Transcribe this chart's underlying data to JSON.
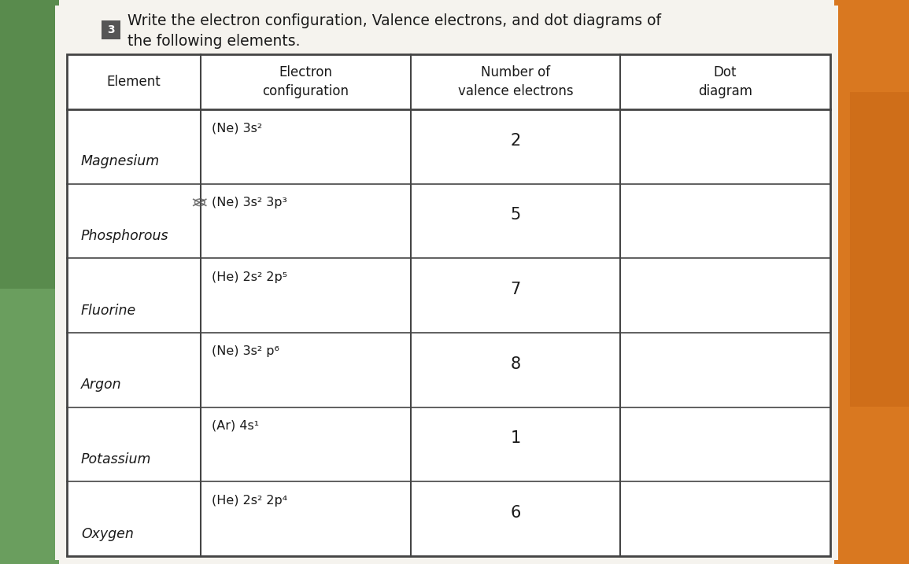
{
  "title_num": "3",
  "title_text": "Write the electron configuration, Valence electrons, and dot diagrams of\nthe following elements.",
  "col_headers": [
    "Element",
    "Electron\nconfiguration",
    "Number of\nvalence electrons",
    "Dot\ndiagram"
  ],
  "rows": [
    {
      "element": "Magnesium",
      "config": "(Ne) 3s²",
      "valence": "2"
    },
    {
      "element": "Phosphorous",
      "config": "(Ne) 3s² 3p³",
      "valence": "5"
    },
    {
      "element": "Fluorine",
      "config": "(He) 2s² 2p⁵",
      "valence": "7"
    },
    {
      "element": "Argon",
      "config": "(Ne) 3s² p⁶",
      "valence": "8"
    },
    {
      "element": "Potassium",
      "config": "(Ar) 4s¹",
      "valence": "1"
    },
    {
      "element": "Oxygen",
      "config": "(He) 2s² 2p⁴",
      "valence": "6"
    }
  ],
  "paper_color": "#f5f3ee",
  "table_bg": "#ffffff",
  "border_color": "#444444",
  "text_color": "#1a1a1a",
  "bg_left_color": "#7a9e6e",
  "bg_right_color": "#e8892a",
  "bg_top_color": "#c8c8c8",
  "fig_width": 11.55,
  "fig_height": 7.17,
  "dpi": 100
}
